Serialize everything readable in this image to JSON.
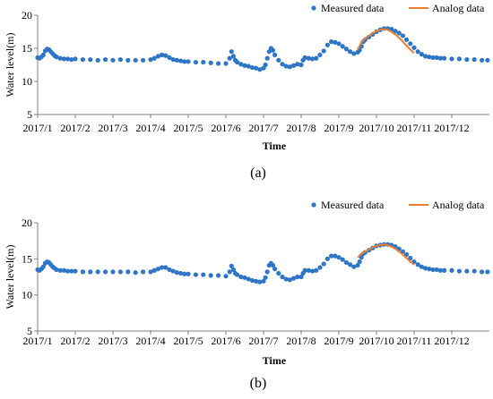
{
  "chart_data": [
    {
      "type": "scatter",
      "panel_label": "(a)",
      "ylabel": "Water level(m)",
      "xlabel": "Time",
      "ylim": [
        5,
        20
      ],
      "yticks": [
        "5",
        "10",
        "15",
        "20"
      ],
      "xticks": [
        "2017/1",
        "2017/2",
        "2017/3",
        "2017/4",
        "2017/5",
        "2017/6",
        "2017/7",
        "2017/8",
        "2017/9",
        "2017/10",
        "2017/11",
        "2017/12"
      ],
      "legend": {
        "position": "top-right",
        "entries": [
          "Measured data",
          "Analog data"
        ]
      },
      "grid": false,
      "colors": {
        "measured": "#2e75c6",
        "analog": "#ed7d31"
      },
      "series": [
        {
          "name": "Measured data",
          "kind": "points",
          "x_month_fraction": [
            0.0,
            0.05,
            0.1,
            0.15,
            0.2,
            0.25,
            0.3,
            0.35,
            0.4,
            0.45,
            0.5,
            0.6,
            0.7,
            0.8,
            0.9,
            1.0,
            1.2,
            1.4,
            1.6,
            1.8,
            2.0,
            2.2,
            2.4,
            2.6,
            2.8,
            3.0,
            3.1,
            3.2,
            3.3,
            3.4,
            3.5,
            3.6,
            3.7,
            3.8,
            3.9,
            4.0,
            4.2,
            4.4,
            4.6,
            4.8,
            5.0,
            5.1,
            5.15,
            5.2,
            5.25,
            5.3,
            5.4,
            5.5,
            5.6,
            5.7,
            5.8,
            5.9,
            6.0,
            6.05,
            6.1,
            6.15,
            6.2,
            6.25,
            6.3,
            6.4,
            6.5,
            6.6,
            6.7,
            6.8,
            6.9,
            7.0,
            7.05,
            7.1,
            7.2,
            7.3,
            7.4,
            7.5,
            7.6,
            7.7,
            7.8,
            7.9,
            8.0,
            8.1,
            8.2,
            8.3,
            8.4,
            8.5,
            8.55,
            8.6,
            8.65,
            8.7,
            8.8,
            8.9,
            9.0,
            9.1,
            9.2,
            9.3,
            9.4,
            9.5,
            9.6,
            9.7,
            9.8,
            9.9,
            10.0,
            10.1,
            10.2,
            10.3,
            10.4,
            10.5,
            10.6,
            10.7,
            10.8,
            11.0,
            11.2,
            11.4,
            11.6,
            11.8,
            11.95
          ],
          "y": [
            13.6,
            13.5,
            13.7,
            14.0,
            14.6,
            14.9,
            14.8,
            14.5,
            14.2,
            13.9,
            13.7,
            13.5,
            13.4,
            13.4,
            13.3,
            13.4,
            13.3,
            13.3,
            13.2,
            13.3,
            13.2,
            13.3,
            13.2,
            13.2,
            13.2,
            13.3,
            13.5,
            13.8,
            14.0,
            13.9,
            13.6,
            13.3,
            13.2,
            13.1,
            13.0,
            13.0,
            12.9,
            12.9,
            12.8,
            12.7,
            12.7,
            13.5,
            14.5,
            13.8,
            13.2,
            12.9,
            12.6,
            12.4,
            12.3,
            12.1,
            12.0,
            11.8,
            12.0,
            12.5,
            13.5,
            14.5,
            15.0,
            14.7,
            14.0,
            13.2,
            12.6,
            12.3,
            12.2,
            12.4,
            12.6,
            12.5,
            13.2,
            13.6,
            13.5,
            13.4,
            13.5,
            14.0,
            14.6,
            15.5,
            16.0,
            15.9,
            15.7,
            15.3,
            14.9,
            14.5,
            14.2,
            14.4,
            14.7,
            15.3,
            16.0,
            16.3,
            16.7,
            17.1,
            17.5,
            17.8,
            18.0,
            18.0,
            17.9,
            17.6,
            17.3,
            16.9,
            16.3,
            15.7,
            15.1,
            14.5,
            14.1,
            13.8,
            13.7,
            13.6,
            13.6,
            13.5,
            13.5,
            13.4,
            13.4,
            13.3,
            13.3,
            13.2,
            13.2
          ]
        },
        {
          "name": "Analog data",
          "kind": "line",
          "x_month_fraction": [
            8.5,
            8.6,
            8.7,
            8.8,
            8.9,
            9.0,
            9.1,
            9.2,
            9.3,
            9.4,
            9.5,
            9.6,
            9.7,
            9.8,
            9.9,
            10.0
          ],
          "y": [
            14.8,
            15.9,
            16.5,
            16.9,
            17.3,
            17.6,
            17.8,
            17.9,
            17.8,
            17.5,
            17.1,
            16.6,
            16.0,
            15.4,
            14.8,
            14.3
          ]
        }
      ]
    },
    {
      "type": "scatter",
      "panel_label": "(b)",
      "ylabel": "Water level(m)",
      "xlabel": "Time",
      "ylim": [
        5,
        20
      ],
      "yticks": [
        "5",
        "10",
        "15",
        "20"
      ],
      "xticks": [
        "2017/1",
        "2017/2",
        "2017/3",
        "2017/4",
        "2017/5",
        "2017/6",
        "2017/7",
        "2017/8",
        "2017/9",
        "2017/10",
        "2017/11",
        "2017/12"
      ],
      "legend": {
        "position": "top-right",
        "entries": [
          "Measured data",
          "Analog data"
        ]
      },
      "grid": false,
      "colors": {
        "measured": "#2e75c6",
        "analog": "#ed7d31"
      },
      "series": [
        {
          "name": "Measured data",
          "kind": "points",
          "x_month_fraction": [
            0.0,
            0.05,
            0.1,
            0.15,
            0.2,
            0.25,
            0.3,
            0.35,
            0.4,
            0.45,
            0.5,
            0.6,
            0.7,
            0.8,
            0.9,
            1.0,
            1.2,
            1.4,
            1.6,
            1.8,
            2.0,
            2.2,
            2.4,
            2.6,
            2.8,
            3.0,
            3.1,
            3.2,
            3.3,
            3.4,
            3.5,
            3.6,
            3.7,
            3.8,
            3.9,
            4.0,
            4.2,
            4.4,
            4.6,
            4.8,
            5.0,
            5.1,
            5.15,
            5.2,
            5.25,
            5.3,
            5.4,
            5.5,
            5.6,
            5.7,
            5.8,
            5.9,
            6.0,
            6.05,
            6.1,
            6.15,
            6.2,
            6.25,
            6.3,
            6.4,
            6.5,
            6.6,
            6.7,
            6.8,
            6.9,
            7.0,
            7.05,
            7.1,
            7.2,
            7.3,
            7.4,
            7.5,
            7.6,
            7.7,
            7.8,
            7.9,
            8.0,
            8.1,
            8.2,
            8.3,
            8.4,
            8.5,
            8.55,
            8.6,
            8.65,
            8.7,
            8.8,
            8.9,
            9.0,
            9.1,
            9.2,
            9.3,
            9.4,
            9.5,
            9.6,
            9.7,
            9.8,
            9.9,
            10.0,
            10.1,
            10.2,
            10.3,
            10.4,
            10.5,
            10.6,
            10.7,
            10.8,
            11.0,
            11.2,
            11.4,
            11.6,
            11.8,
            11.95
          ],
          "y": [
            13.5,
            13.4,
            13.6,
            13.9,
            14.4,
            14.6,
            14.5,
            14.2,
            13.9,
            13.7,
            13.5,
            13.4,
            13.4,
            13.3,
            13.3,
            13.3,
            13.2,
            13.2,
            13.2,
            13.2,
            13.2,
            13.2,
            13.2,
            13.1,
            13.2,
            13.2,
            13.4,
            13.6,
            13.8,
            13.8,
            13.5,
            13.3,
            13.1,
            13.0,
            12.9,
            12.9,
            12.8,
            12.8,
            12.7,
            12.7,
            12.6,
            13.2,
            14.0,
            13.5,
            13.0,
            12.8,
            12.5,
            12.4,
            12.2,
            12.0,
            11.9,
            11.8,
            11.9,
            12.4,
            13.2,
            14.1,
            14.4,
            14.1,
            13.6,
            13.0,
            12.5,
            12.2,
            12.1,
            12.3,
            12.5,
            12.5,
            13.0,
            13.4,
            13.4,
            13.3,
            13.4,
            13.8,
            14.3,
            15.0,
            15.4,
            15.4,
            15.2,
            14.9,
            14.5,
            14.2,
            13.9,
            14.1,
            14.6,
            15.2,
            15.7,
            15.9,
            16.2,
            16.5,
            16.8,
            16.9,
            17.0,
            17.0,
            16.9,
            16.7,
            16.4,
            16.0,
            15.6,
            15.1,
            14.6,
            14.2,
            13.9,
            13.7,
            13.6,
            13.5,
            13.5,
            13.4,
            13.4,
            13.4,
            13.3,
            13.3,
            13.3,
            13.2,
            13.2
          ]
        },
        {
          "name": "Analog data",
          "kind": "line",
          "x_month_fraction": [
            8.5,
            8.6,
            8.7,
            8.8,
            8.9,
            9.0,
            9.1,
            9.2,
            9.3,
            9.4,
            9.5,
            9.6,
            9.7,
            9.8,
            9.9,
            10.0
          ],
          "y": [
            15.2,
            15.7,
            16.0,
            16.3,
            16.6,
            16.8,
            16.9,
            17.0,
            16.9,
            16.7,
            16.4,
            16.0,
            15.6,
            15.1,
            14.6,
            14.2
          ]
        }
      ]
    }
  ]
}
